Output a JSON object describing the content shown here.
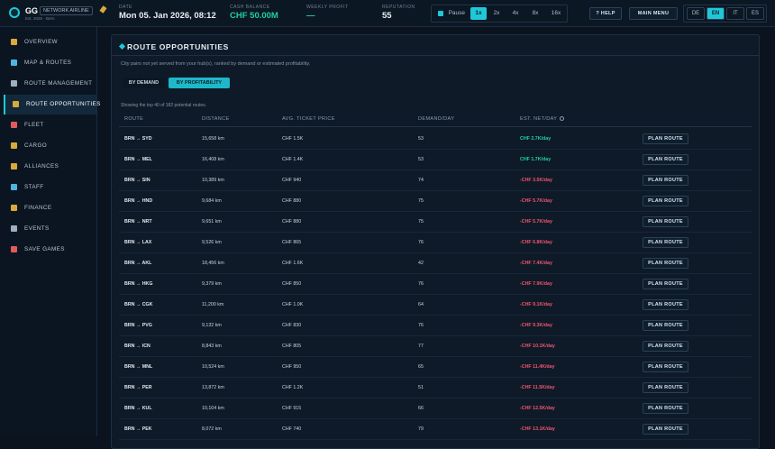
{
  "topbar": {
    "airline_code": "GG",
    "airline_type": "NETWORK AIRLINE",
    "airline_sub": "Est. 2026 · Bern",
    "date_label": "DATE",
    "date": "Mon 05. Jan 2026, 08:12",
    "cash_label": "CASH BALANCE",
    "cash": "CHF 50.00M",
    "profit_label": "WEEKLY PROFIT",
    "profit": "—",
    "reputation_label": "REPUTATION",
    "reputation": "55",
    "speeds": [
      "Pause",
      "1x",
      "2x",
      "4x",
      "8x",
      "16x"
    ],
    "help": "? HELP",
    "menu": "MAIN MENU",
    "languages": [
      "DE",
      "EN",
      "IT",
      "ES"
    ]
  },
  "sidebar": {
    "items": [
      "OVERVIEW",
      "MAP & ROUTES",
      "ROUTE MANAGEMENT",
      "ROUTE OPPORTUNITIES",
      "FLEET",
      "CARGO",
      "ALLIANCES",
      "STAFF",
      "FINANCE",
      "EVENTS",
      "SAVE GAMES"
    ]
  },
  "panel": {
    "title": "ROUTE OPPORTUNITIES",
    "subtitle": "City pairs not yet served from your hub(s), ranked by demand or estimated profitability.",
    "tabs": [
      "BY DEMAND",
      "BY PROFITABILITY"
    ],
    "summary": "Showing the top 40 of 182 potential routes.",
    "action": "PLAN ROUTE",
    "table": {
      "headers": [
        "ROUTE",
        "DISTANCE",
        "AVG. TICKET PRICE",
        "DEMAND/DAY",
        "EST. NET/DAY"
      ],
      "rows": [
        [
          "BRN → SYD",
          "15,658 km",
          "CHF 1.5K",
          "53",
          "CHF 2.7K/day"
        ],
        [
          "BRN → MEL",
          "16,408 km",
          "CHF 1.4K",
          "53",
          "CHF 1.7K/day"
        ],
        [
          "BRN → SIN",
          "10,389 km",
          "CHF 940",
          "74",
          "-CHF 3.5K/day"
        ],
        [
          "BRN → HND",
          "9,684 km",
          "CHF 880",
          "75",
          "-CHF 5.7K/day"
        ],
        [
          "BRN → NRT",
          "9,651 km",
          "CHF 880",
          "75",
          "-CHF 5.7K/day"
        ],
        [
          "BRN → LAX",
          "9,526 km",
          "CHF 865",
          "76",
          "-CHF 6.8K/day"
        ],
        [
          "BRN → AKL",
          "18,456 km",
          "CHF 1.6K",
          "42",
          "-CHF 7.4K/day"
        ],
        [
          "BRN → HKG",
          "9,379 km",
          "CHF 850",
          "76",
          "-CHF 7.9K/day"
        ],
        [
          "BRN → CGK",
          "11,200 km",
          "CHF 1.0K",
          "64",
          "-CHF 9.1K/day"
        ],
        [
          "BRN → PVG",
          "9,132 km",
          "CHF 830",
          "76",
          "-CHF 9.3K/day"
        ],
        [
          "BRN → ICN",
          "8,843 km",
          "CHF 805",
          "77",
          "-CHF 10.1K/day"
        ],
        [
          "BRN → MNL",
          "10,524 km",
          "CHF 950",
          "65",
          "-CHF 11.4K/day"
        ],
        [
          "BRN → PER",
          "13,872 km",
          "CHF 1.2K",
          "51",
          "-CHF 11.5K/day"
        ],
        [
          "BRN → KUL",
          "10,104 km",
          "CHF 915",
          "66",
          "-CHF 12.5K/day"
        ],
        [
          "BRN → PEK",
          "8,072 km",
          "CHF 740",
          "79",
          "-CHF 13.1K/day"
        ]
      ]
    }
  }
}
